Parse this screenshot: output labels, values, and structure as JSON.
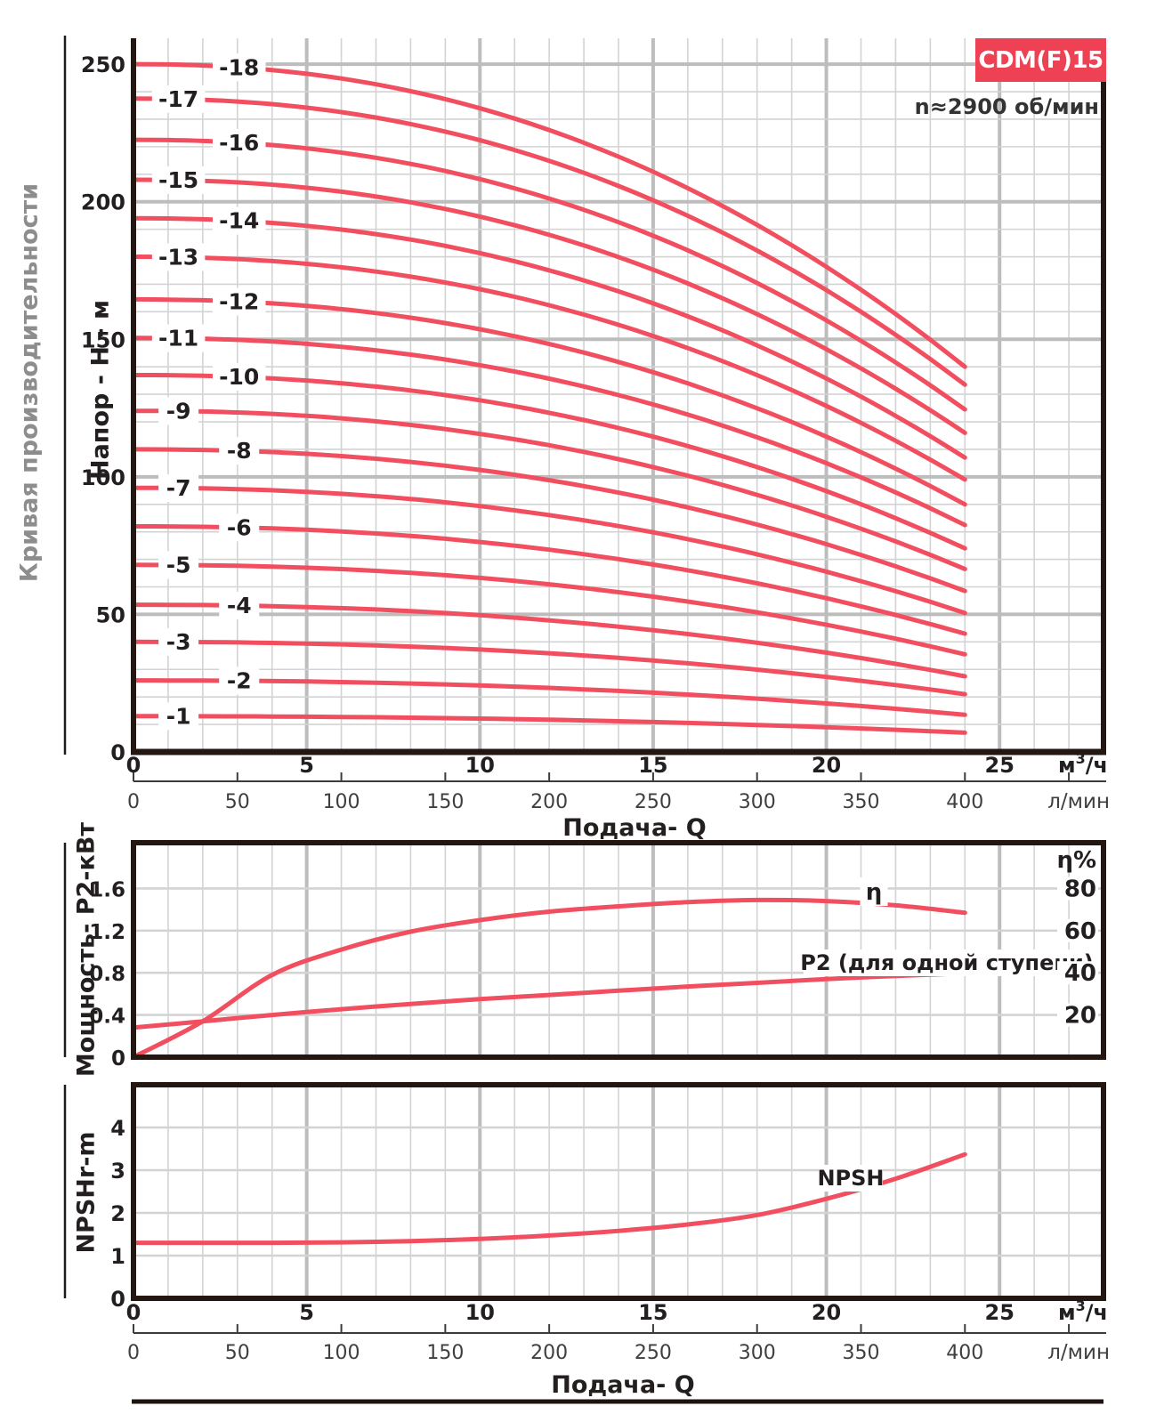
{
  "title_badge": "CDM(F)15",
  "speed_note": "n≈2900 об/мин",
  "side_label": "Кривая производительности",
  "colors": {
    "curve": "#f14f60",
    "badge": "#ee4254",
    "text": "#231f20",
    "grid_minor": "#d3d3d3",
    "grid_major": "#bdbdbd",
    "border": "#241711",
    "axis_gray": "#3f3f3f",
    "gray_label": "#8d8d8d"
  },
  "x_axis": {
    "label": "Подача- Q",
    "m3h_ticks": [
      0,
      5,
      10,
      15,
      20,
      25
    ],
    "m3h_unit": {
      "pre": "м",
      "sup": "3",
      "post": "/ч"
    },
    "lmin_ticks": [
      0,
      50,
      100,
      150,
      200,
      250,
      300,
      350,
      400
    ],
    "lmin_unit": "л/мин"
  },
  "chart_data": [
    {
      "type": "line",
      "name": "head",
      "ylabel": "Напор - H - м",
      "y_ticks": [
        0,
        50,
        100,
        150,
        200,
        250
      ],
      "ylim": [
        0,
        259
      ],
      "xlim_m3h": [
        0,
        28
      ],
      "flow_range_m3h": [
        0,
        24
      ],
      "curve_shape_exponent": 2.2,
      "curves": [
        {
          "label": "-1",
          "stages": 1,
          "h_start_m": 13,
          "h_end_m": 7
        },
        {
          "label": "-2",
          "stages": 2,
          "h_start_m": 26,
          "h_end_m": 13.5
        },
        {
          "label": "-3",
          "stages": 3,
          "h_start_m": 40,
          "h_end_m": 21
        },
        {
          "label": "-4",
          "stages": 4,
          "h_start_m": 53.5,
          "h_end_m": 27.5
        },
        {
          "label": "-5",
          "stages": 5,
          "h_start_m": 68,
          "h_end_m": 35.5
        },
        {
          "label": "-6",
          "stages": 6,
          "h_start_m": 82,
          "h_end_m": 43
        },
        {
          "label": "-7",
          "stages": 7,
          "h_start_m": 96,
          "h_end_m": 50.5
        },
        {
          "label": "-8",
          "stages": 8,
          "h_start_m": 110,
          "h_end_m": 58.5
        },
        {
          "label": "-9",
          "stages": 9,
          "h_start_m": 124,
          "h_end_m": 66.5
        },
        {
          "label": "-10",
          "stages": 10,
          "h_start_m": 137,
          "h_end_m": 74
        },
        {
          "label": "-11",
          "stages": 11,
          "h_start_m": 150.5,
          "h_end_m": 82.5
        },
        {
          "label": "-12",
          "stages": 12,
          "h_start_m": 164.5,
          "h_end_m": 90
        },
        {
          "label": "-13",
          "stages": 13,
          "h_start_m": 180,
          "h_end_m": 99
        },
        {
          "label": "-14",
          "stages": 14,
          "h_start_m": 194,
          "h_end_m": 107
        },
        {
          "label": "-15",
          "stages": 15,
          "h_start_m": 208,
          "h_end_m": 116
        },
        {
          "label": "-16",
          "stages": 16,
          "h_start_m": 222.5,
          "h_end_m": 124.5
        },
        {
          "label": "-17",
          "stages": 17,
          "h_start_m": 237.5,
          "h_end_m": 133.5
        },
        {
          "label": "-18",
          "stages": 18,
          "h_start_m": 250,
          "h_end_m": 140
        }
      ]
    },
    {
      "type": "line",
      "name": "power-efficiency",
      "ylabel": "Мощность- P2-кВт",
      "y_ticks": [
        0,
        0.4,
        0.8,
        1.2,
        1.6
      ],
      "ylim": [
        0,
        2.03
      ],
      "eta_axis": {
        "title": "η%",
        "ticks": [
          20,
          40,
          60,
          80
        ]
      },
      "eta_label": "η",
      "p2_label": "P2 (для одной ступени)",
      "q_m3h": [
        0,
        2,
        4,
        6,
        8,
        10,
        12,
        14,
        16,
        18,
        20,
        22,
        24
      ],
      "p2_kw": [
        0.28,
        0.34,
        0.4,
        0.455,
        0.505,
        0.55,
        0.59,
        0.63,
        0.67,
        0.705,
        0.74,
        0.77,
        0.795
      ],
      "eta_pct": [
        0,
        17,
        39,
        51,
        59.5,
        65,
        69,
        71.5,
        73.5,
        74.5,
        74,
        72,
        68.5
      ]
    },
    {
      "type": "line",
      "name": "npsh",
      "ylabel": "NPSHr-m",
      "y_ticks": [
        0,
        1,
        2,
        3,
        4
      ],
      "ylim": [
        0,
        5
      ],
      "label": "NPSH",
      "q_m3h": [
        0,
        2,
        4,
        6,
        8,
        10,
        12,
        14,
        16,
        18,
        20,
        22,
        24
      ],
      "npsh_m": [
        1.3,
        1.3,
        1.3,
        1.31,
        1.34,
        1.39,
        1.47,
        1.58,
        1.73,
        1.95,
        2.33,
        2.8,
        3.37
      ]
    }
  ]
}
